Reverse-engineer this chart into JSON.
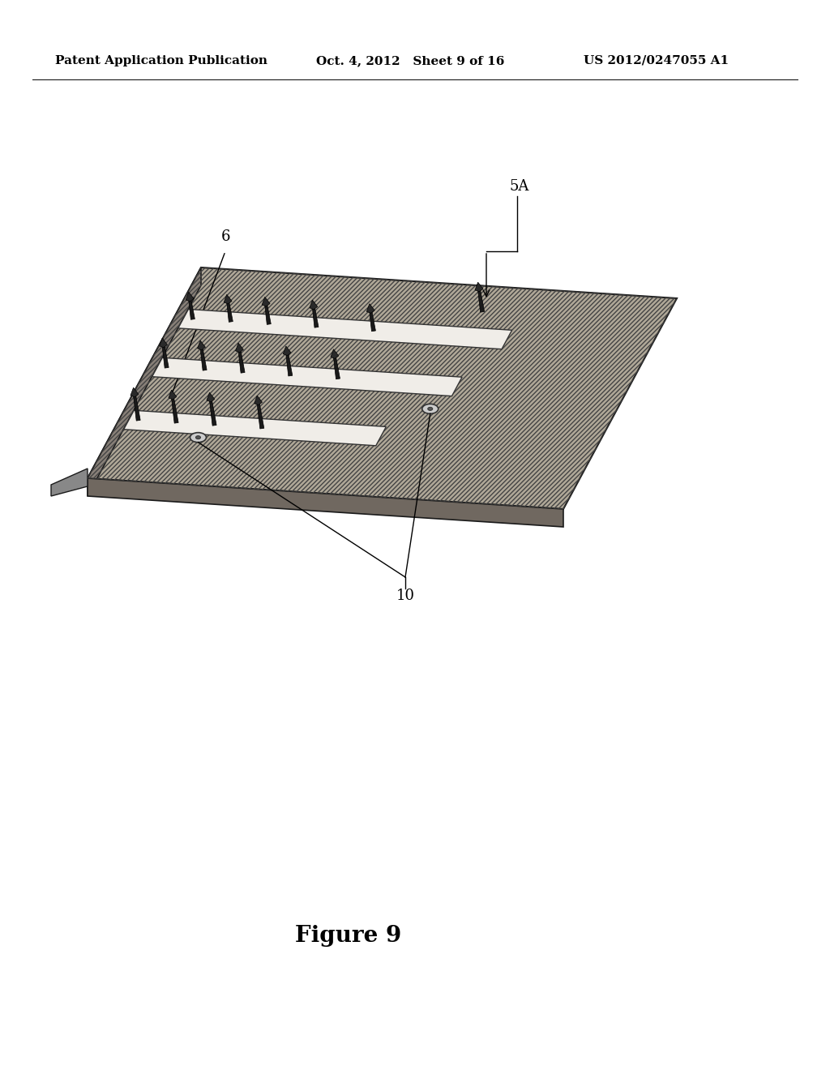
{
  "header_left": "Patent Application Publication",
  "header_mid": "Oct. 4, 2012   Sheet 9 of 16",
  "header_right": "US 2012/0247055 A1",
  "figure_label": "Figure 9",
  "label_6": "6",
  "label_5A": "5A",
  "label_10": "10",
  "bg_color": "#ffffff",
  "header_fontsize": 11,
  "figure_label_fontsize": 20,
  "slab_face_color": "#b0a898",
  "slab_edge_color": "#1a1a1a",
  "slot_color": "#e8e8e8",
  "spike_color": "#222222",
  "hole_fill_color": "#cccccc",
  "hole_edge_color": "#333333"
}
